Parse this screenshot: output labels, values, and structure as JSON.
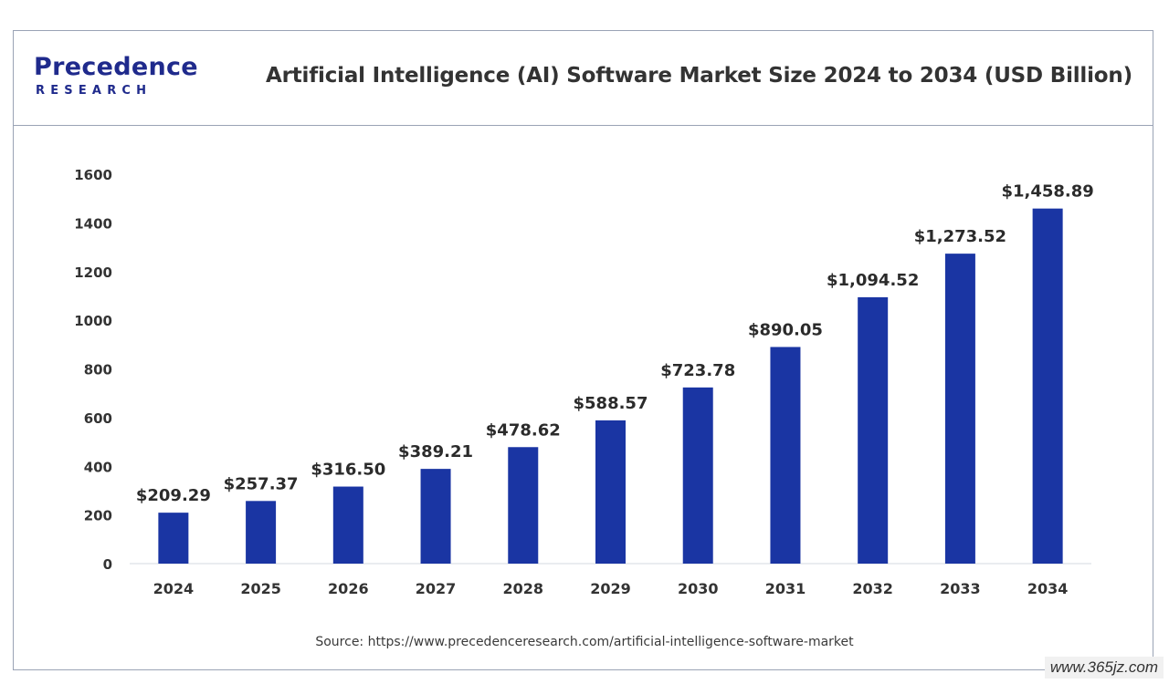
{
  "brand": {
    "name": "Precedence",
    "sub": "RESEARCH",
    "color": "#1f2a8c"
  },
  "header": {
    "title": "Artificial Intelligence (AI) Software Market Size 2024 to 2034 (USD Billion)"
  },
  "source": "Source: https://www.precedenceresearch.com/artificial-intelligence-software-market",
  "watermark": "www.365jz.com",
  "chart_data": {
    "type": "bar",
    "title": "Artificial Intelligence (AI) Software Market Size 2024 to 2034 (USD Billion)",
    "xlabel": "",
    "ylabel": "",
    "categories": [
      "2024",
      "2025",
      "2026",
      "2027",
      "2028",
      "2029",
      "2030",
      "2031",
      "2032",
      "2033",
      "2034"
    ],
    "values": [
      209.29,
      257.37,
      316.5,
      389.21,
      478.62,
      588.57,
      723.78,
      890.05,
      1094.52,
      1273.52,
      1458.89
    ],
    "data_labels": [
      "$209.29",
      "$257.37",
      "$316.50",
      "$389.21",
      "$478.62",
      "$588.57",
      "$723.78",
      "$890.05",
      "$1,094.52",
      "$1,273.52",
      "$1,458.89"
    ],
    "yticks": [
      "0",
      "200",
      "400",
      "600",
      "800",
      "1000",
      "1200",
      "1400",
      "1600"
    ],
    "ylim": [
      0,
      1600
    ],
    "grid": false,
    "legend": "none",
    "bar_color": "#1a35a3"
  }
}
